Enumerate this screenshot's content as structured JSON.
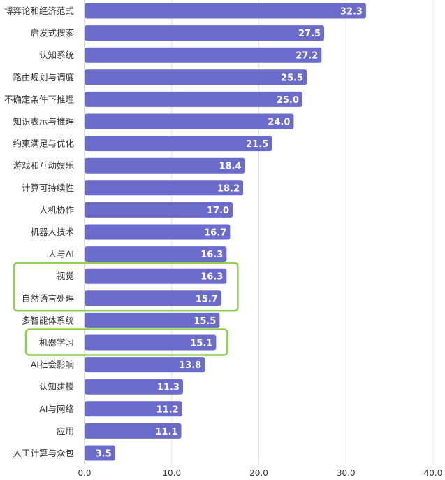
{
  "chart_data": {
    "type": "bar",
    "orientation": "horizontal",
    "categories": [
      "博弈论和经济范式",
      "启发式搜索",
      "认知系统",
      "路由规划与调度",
      "不确定条件下推理",
      "知识表示与推理",
      "约束满足与优化",
      "游戏和互动娱乐",
      "计算可持续性",
      "人机协作",
      "机器人技术",
      "人与AI",
      "视觉",
      "自然语言处理",
      "多智能体系统",
      "机器学习",
      "AI社会影响",
      "认知建模",
      "AI与网络",
      "应用",
      "人工计算与众包"
    ],
    "values": [
      32.3,
      27.5,
      27.2,
      25.5,
      25.0,
      24.0,
      21.5,
      18.4,
      18.2,
      17.0,
      16.7,
      16.3,
      16.3,
      15.7,
      15.5,
      15.1,
      13.8,
      11.3,
      11.2,
      11.1,
      3.5
    ],
    "value_labels": [
      "32.3",
      "27.5",
      "27.2",
      "25.5",
      "25.0",
      "24.0",
      "21.5",
      "18.4",
      "18.2",
      "17.0",
      "16.7",
      "16.3",
      "16.3",
      "15.7",
      "15.5",
      "15.1",
      "13.8",
      "11.3",
      "11.2",
      "11.1",
      "3.5"
    ],
    "xlim": [
      0,
      40
    ],
    "xticks": [
      0,
      10,
      20,
      30,
      40
    ],
    "xtick_labels": [
      "0.0",
      "10.0",
      "20.0",
      "30.0",
      "40.0"
    ],
    "grid": true,
    "bar_color": "#6b6bcc",
    "highlight_color": "#8fd14f",
    "highlight_groups": [
      [
        "视觉",
        "自然语言处理"
      ],
      [
        "机器学习"
      ]
    ]
  }
}
